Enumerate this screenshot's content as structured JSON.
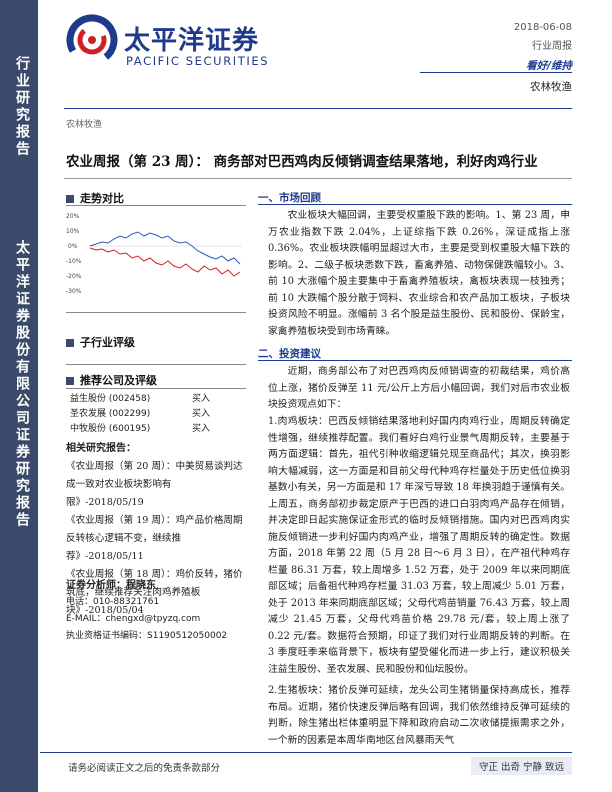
{
  "band": {
    "title1": "行业研究报告",
    "title2": "太平洋证券股份有限公司证券研究报告"
  },
  "header": {
    "logo_cn": "太平洋证券",
    "logo_en": "PACIFIC SECURITIES",
    "date": "2018-06-08",
    "report_type": "行业周报",
    "rating": "看好/维持",
    "industry": "农林牧渔",
    "category": "农林牧渔"
  },
  "title": "农业周报（第 23 周）： 商务部对巴西鸡肉反倾销调查结果落地，利好肉鸡行业",
  "left": {
    "trend_head": "走势对比",
    "chart_ticks": [
      "20%",
      "10%",
      "0%",
      "-10%",
      "-20%",
      "-30%"
    ],
    "sub_head": "子行业评级",
    "rec_head": "推荐公司及评级",
    "stocks": [
      {
        "name": "益生股份 (002458)",
        "rating": "买入"
      },
      {
        "name": "圣农发展 (002299)",
        "rating": "买入"
      },
      {
        "name": "中牧股份 (600195)",
        "rating": "买入"
      }
    ],
    "reports_head": "相关研究报告：",
    "reports": [
      "《农业周报（第 20 周）：中美贸易谈判达成一致对农业板块影响有限》-2018/05/19",
      "《农业周报（第 19 周）：鸡产品价格周期反转核心逻辑不变，继续推荐》-2018/05/11",
      "《农业周报（第 18 周）：鸡价反转，猪价筑底，继续推荐关注肉鸡养殖板块》-2018/05/04"
    ],
    "analyst_head": "证券分析师：程晓东",
    "analyst_phone": "电话：010-88321761",
    "analyst_email": "E-MAIL：chengxd@tpyzq.com",
    "analyst_cert": "执业资格证书编码：S1190512050002"
  },
  "right": {
    "sec1_head": "一、市场回顾",
    "sec1_para": "农业板块大幅回调，主要受权重股下跌的影响。1、第 23 周，申万农业指数下跌 2.04%，上证综指下跌 0.26%，深证成指上涨 0.36%。农业板块跌幅明显超过大市，主要是受到权重股大幅下跌的影响。2、二级子板块悉数下跌，畜禽养殖、动物保健跌幅较小。3、前 10 大涨幅个股主要集中于畜禽养殖板块，禽板块表现一枝独秀；前 10 大跌幅个股分散于饲料、农业综合和农产品加工板块，子板块投资风险不明显。涨幅前 3 名个股是益生股份、民和股份、保龄宝，家禽养殖板块受到市场青睐。",
    "sec2_head": "二、投资建议",
    "sec2_intro": "近期，商务部公布了对巴西鸡肉反倾销调查的初裁结果，鸡价高位上涨，猪价反弹至 11 元/公斤上方后小幅回调，我们对后市农业板块投资观点如下：",
    "sec2_p1": "1.肉鸡板块：巴西反倾销结果落地利好国内肉鸡行业，周期反转确定性增强，继续推荐配置。我们看好白鸡行业景气周期反转，主要基于两方面逻辑：首先，祖代引种收缩逻辑兑现至商品代；其次，换羽影响大幅减弱，这一方面是和目前父母代种鸡存栏量处于历史低位换羽基数小有关，另一方面是和 17 年深亏导致 18 年换羽趋于谨慎有关。上周五，商务部初步裁定原产于巴西的进口白羽肉鸡产品存在倾销，并决定即日起实施保证金形式的临时反倾销措施。国内对巴西鸡肉实施反倾销进一步利好国内肉鸡产业，增强了周期反转的确定性。数据方面，2018 年第 22 周（5 月 28 日～6 月 3 日），在产祖代种鸡存栏量 86.31 万套，较上周增多 1.52 万套，处于 2009 年以来同期底部区域；后备祖代种鸡存栏量 31.03 万套，较上周减少 5.01 万套，处于 2013 年来同期底部区域；父母代鸡苗销量 76.43 万套，较上周减少 21.45 万套，父母代鸡苗价格 29.78 元/套，较上周上涨了 0.22 元/套。数据符合预期，印证了我们对行业周期反转的判断。在 3 季度旺季来临背景下，板块有望受催化而进一步上行，建议积极关注益生股份、圣农发展、民和股份和仙坛股份。",
    "sec2_p2": "2.生猪板块：猪价反弹可延续，龙头公司生猪销量保持高成长，推荐布局。近期，猪价快速反弹后略有回调，我们依然维持反弹可延续的判断，除生猪出栏体重明显下降和政府启动二次收储提振需求之外，一个新的因素是本周华南地区台风暴雨天气"
  },
  "footer": {
    "left": "请务必阅读正文之后的免责条款部分",
    "right": "守正  出奇  宁静  致远"
  }
}
